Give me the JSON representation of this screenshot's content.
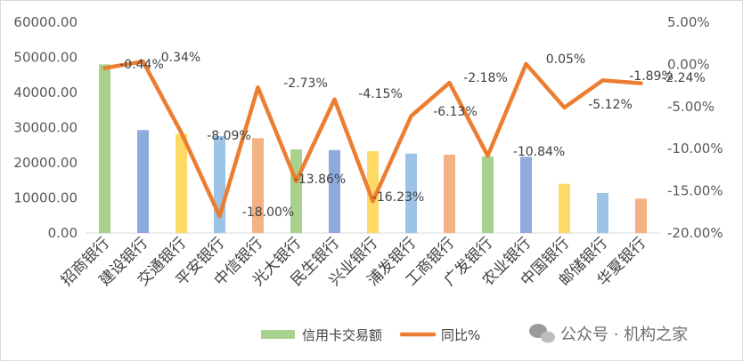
{
  "chart_data": {
    "type": "bar",
    "categories": [
      "招商银行",
      "建设银行",
      "交通银行",
      "平安银行",
      "中信银行",
      "光大银行",
      "民生银行",
      "兴业银行",
      "浦发银行",
      "工商银行",
      "广发银行",
      "农业银行",
      "中国银行",
      "邮储银行",
      "华夏银行"
    ],
    "series": [
      {
        "name": "信用卡交易额",
        "type": "bar",
        "axis": "left",
        "values": [
          48000,
          29300,
          28200,
          27600,
          27000,
          23800,
          23600,
          23300,
          22600,
          22300,
          21800,
          21700,
          14000,
          11400,
          9800
        ],
        "colors": [
          "#a9d18e",
          "#8faadc",
          "#ffd966",
          "#9dc3e6",
          "#f4b183",
          "#a9d18e",
          "#8faadc",
          "#ffd966",
          "#9dc3e6",
          "#f4b183",
          "#a9d18e",
          "#8faadc",
          "#ffd966",
          "#9dc3e6",
          "#f4b183"
        ]
      },
      {
        "name": "同比%",
        "type": "line",
        "axis": "right",
        "color": "#ed7d31",
        "values": [
          -0.44,
          0.34,
          -8.09,
          -18.0,
          -2.73,
          -13.86,
          -4.15,
          -16.23,
          -6.13,
          -2.18,
          -10.84,
          0.05,
          -5.12,
          -1.89,
          -2.24
        ],
        "labels": [
          "-0.44%",
          "0.34%",
          "-8.09%",
          "-18.00%",
          "-2.73%",
          "-13.86%",
          "-4.15%",
          "-16.23%",
          "-6.13%",
          "-2.18%",
          "-10.84%",
          "0.05%",
          "-5.12%",
          "-1.89%",
          "-2.24%"
        ]
      }
    ],
    "left_axis": {
      "ylim": [
        0,
        60000
      ],
      "ticks": [
        "60000.00",
        "50000.00",
        "40000.00",
        "30000.00",
        "20000.00",
        "10000.00",
        "0.00"
      ]
    },
    "right_axis": {
      "ylim": [
        -20,
        5
      ],
      "ticks": [
        "5.00%",
        "0.00%",
        "-5.00%",
        "-10.00%",
        "-15.00%",
        "-20.00%"
      ]
    },
    "legend_position": "bottom",
    "grid": false
  },
  "watermark": {
    "icon": "wechat-icon",
    "text": "公众号 · 机构之家"
  }
}
